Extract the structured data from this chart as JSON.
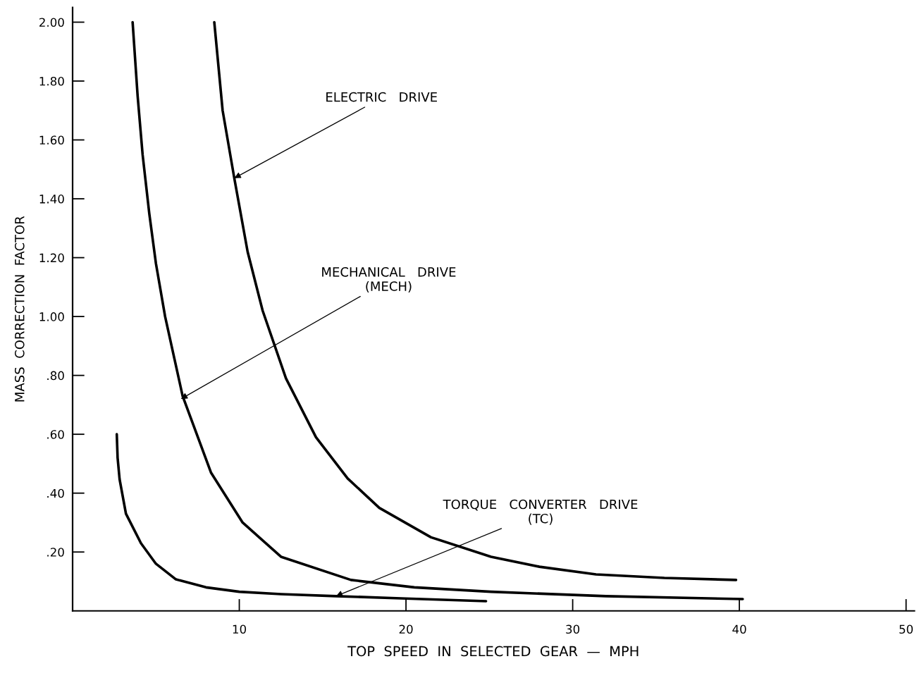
{
  "chart_data": {
    "type": "line",
    "xlabel": "TOP  SPEED  IN  SELECTED  GEAR  —  MPH",
    "ylabel": "MASS  CORRECTION  FACTOR",
    "xlim": [
      0,
      50.5
    ],
    "ylim": [
      0,
      2.05
    ],
    "xticks": [
      10,
      20,
      30,
      40,
      50
    ],
    "yticks": [
      {
        "value": 0.2,
        "label": ".20"
      },
      {
        "value": 0.4,
        "label": ".40"
      },
      {
        "value": 0.6,
        "label": ".60"
      },
      {
        "value": 0.8,
        "label": ".80"
      },
      {
        "value": 1.0,
        "label": "1.00"
      },
      {
        "value": 1.2,
        "label": "1.20"
      },
      {
        "value": 1.4,
        "label": "1.40"
      },
      {
        "value": 1.6,
        "label": "1.60"
      },
      {
        "value": 1.8,
        "label": "1.80"
      },
      {
        "value": 2.0,
        "label": "2.00"
      }
    ],
    "grid": false,
    "legend": false,
    "marker": "none",
    "line_style": "solid",
    "series": [
      {
        "color": "#000000",
        "x": [
          8.5,
          9.0,
          9.7,
          10.5,
          11.4,
          12.8,
          14.6,
          16.5,
          18.4,
          21.5,
          25.1,
          28.0,
          31.4,
          35.5,
          39.8
        ],
        "values": [
          2.0,
          1.7,
          1.47,
          1.22,
          1.02,
          0.79,
          0.59,
          0.45,
          0.35,
          0.25,
          0.184,
          0.15,
          0.124,
          0.112,
          0.105
        ]
      },
      {
        "color": "#000000",
        "x": [
          3.6,
          3.9,
          4.2,
          4.6,
          5.0,
          5.55,
          6.6,
          8.3,
          10.2,
          12.5,
          16.7,
          20.5,
          25.1,
          32.0,
          40.2
        ],
        "values": [
          2.0,
          1.75,
          1.55,
          1.35,
          1.18,
          1.0,
          0.73,
          0.47,
          0.3,
          0.184,
          0.105,
          0.08,
          0.065,
          0.05,
          0.04
        ]
      },
      {
        "color": "#000000",
        "x": [
          2.65,
          2.7,
          2.82,
          3.2,
          4.1,
          5.0,
          6.2,
          8.0,
          10.0,
          12.5,
          15.8,
          20.0,
          24.8
        ],
        "values": [
          0.6,
          0.52,
          0.447,
          0.33,
          0.23,
          0.16,
          0.107,
          0.08,
          0.065,
          0.057,
          0.05,
          0.042,
          0.033
        ]
      }
    ],
    "annotations": [
      {
        "text": "ELECTRIC   DRIVE",
        "x": 9.7,
        "y": 1.47
      },
      {
        "text": "MECHANICAL   DRIVE\n(MECH)",
        "x": 6.5,
        "y": 0.72
      },
      {
        "text": "TORQUE   CONVERTER   DRIVE\n(TC)",
        "x": 15.8,
        "y": 0.05
      }
    ]
  }
}
